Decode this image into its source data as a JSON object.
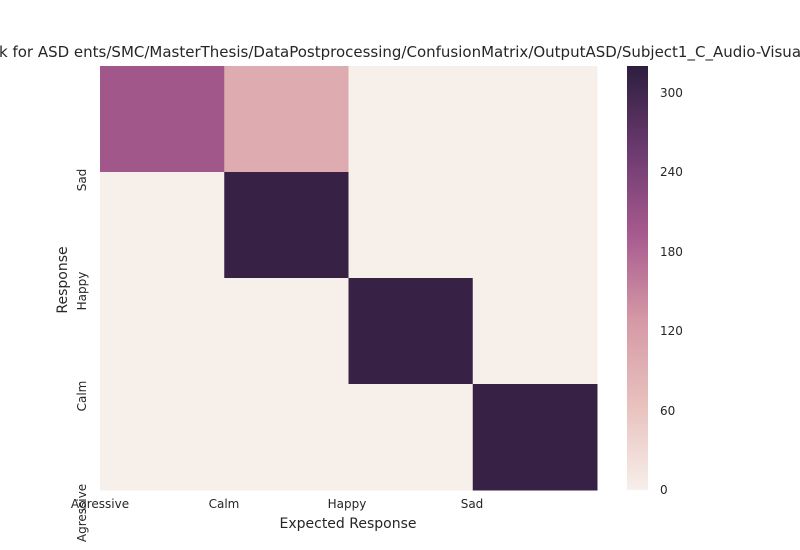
{
  "chart_data": {
    "type": "heatmap",
    "title": "k for ASD ents/SMC/MasterThesis/DataPostprocessing/ConfusionMatrix/OutputASD/Subject1_C_Audio-Visua",
    "xlabel": "Expected Response",
    "ylabel": "Response",
    "x_tick_labels": [
      "Agressive",
      "Calm",
      "Happy",
      "Sad"
    ],
    "y_tick_labels": [
      "Sad",
      "Happy",
      "Calm",
      "Agressive"
    ],
    "matrix": [
      [
        200,
        100,
        0,
        0
      ],
      [
        0,
        310,
        0,
        0
      ],
      [
        0,
        0,
        310,
        0
      ],
      [
        0,
        0,
        0,
        310
      ]
    ],
    "colorbar": {
      "vmin": 0,
      "vmax": 320,
      "ticks": [
        "0",
        "60",
        "120",
        "180",
        "240",
        "300"
      ],
      "colors": [
        "#f7efea",
        "#e8c1bd",
        "#d599a6",
        "#a85b8e",
        "#6c3a6f",
        "#2d1e3e"
      ]
    }
  }
}
